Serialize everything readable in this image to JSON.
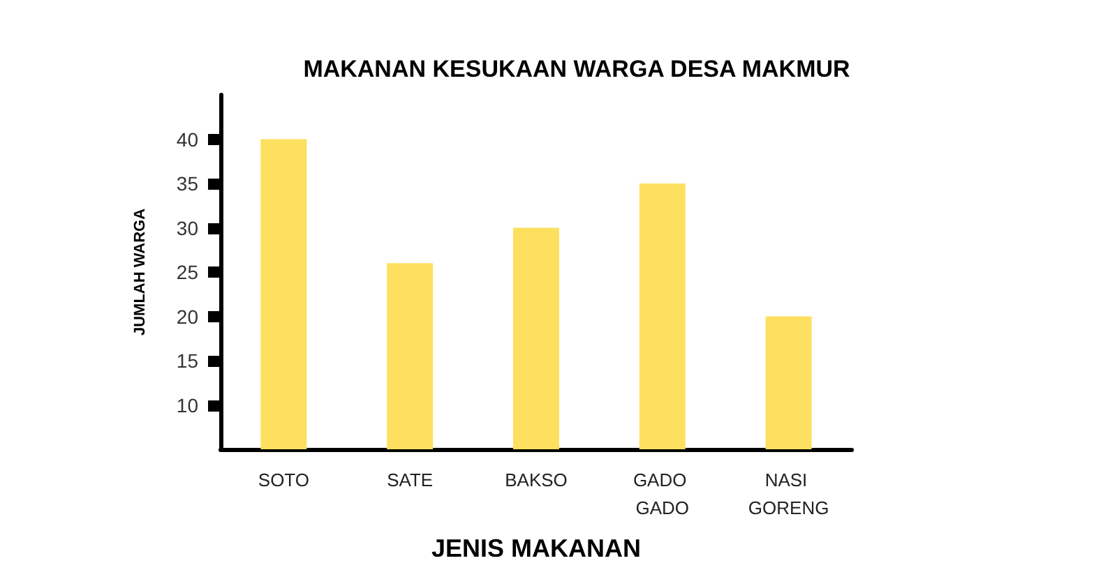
{
  "chart_data": {
    "type": "bar",
    "title": "MAKANAN KESUKAAN WARGA DESA MAKMUR",
    "xlabel": "JENIS MAKANAN",
    "ylabel": "JUMLAH WARGA",
    "categories": [
      "SOTO",
      "SATE",
      "BAKSO",
      "GADO GADO",
      "NASI GORENG"
    ],
    "values": [
      40,
      26,
      30,
      35,
      20
    ],
    "color": "#fde05f",
    "ylim": [
      5,
      45
    ],
    "yticks": [
      10,
      15,
      20,
      25,
      30,
      35,
      40
    ],
    "grid": false
  }
}
